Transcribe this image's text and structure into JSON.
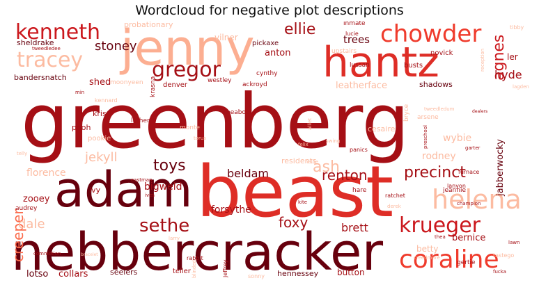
{
  "title": "Wordcloud for negative plot descriptions",
  "words": [
    {
      "text": "greenberg",
      "color": "#a50f15",
      "weight": 1.0
    },
    {
      "text": "beast",
      "color": "#de2d26",
      "weight": 0.9
    },
    {
      "text": "nebbercracker",
      "color": "#67000d",
      "weight": 0.78
    },
    {
      "text": "jenny",
      "color": "#fcae91",
      "weight": 0.72
    },
    {
      "text": "adam",
      "color": "#67000d",
      "weight": 0.7
    },
    {
      "text": "hantz",
      "color": "#de2d26",
      "weight": 0.62
    },
    {
      "text": "helena",
      "color": "#fcbba1",
      "weight": 0.4
    },
    {
      "text": "chowder",
      "color": "#ef3b2c",
      "weight": 0.38
    },
    {
      "text": "coraline",
      "color": "#ef3b2c",
      "weight": 0.38
    },
    {
      "text": "kenneth",
      "color": "#cb181d",
      "weight": 0.34
    },
    {
      "text": "tracey",
      "color": "#fcbba1",
      "weight": 0.34
    },
    {
      "text": "krueger",
      "color": "#cb181d",
      "weight": 0.34
    },
    {
      "text": "gregor",
      "color": "#a50f15",
      "weight": 0.3
    },
    {
      "text": "precinct",
      "color": "#a50f15",
      "weight": 0.28
    },
    {
      "text": "sethe",
      "color": "#a50f15",
      "weight": 0.28
    },
    {
      "text": "creeper",
      "color": "#fb6a4a",
      "weight": 0.27
    },
    {
      "text": "ash",
      "color": "#fcbba1",
      "weight": 0.26
    },
    {
      "text": "agnes",
      "color": "#cb181d",
      "weight": 0.25
    },
    {
      "text": "toys",
      "color": "#67000d",
      "weight": 0.24
    },
    {
      "text": "ellie",
      "color": "#a50f15",
      "weight": 0.22
    },
    {
      "text": "stoney",
      "color": "#67000d",
      "weight": 0.2
    },
    {
      "text": "foxy",
      "color": "#a50f15",
      "weight": 0.2
    },
    {
      "text": "renton",
      "color": "#a50f15",
      "weight": 0.2
    },
    {
      "text": "dale",
      "color": "#fcbba1",
      "weight": 0.2
    },
    {
      "text": "jekyll",
      "color": "#fcbba1",
      "weight": 0.2
    },
    {
      "text": "brett",
      "color": "#a50f15",
      "weight": 0.18
    },
    {
      "text": "lotso",
      "color": "#67000d",
      "weight": 0.12
    },
    {
      "text": "collars",
      "color": "#a50f15",
      "weight": 0.12
    },
    {
      "text": "hyde",
      "color": "#a50f15",
      "weight": 0.18
    },
    {
      "text": "beldam",
      "color": "#67000d",
      "weight": 0.18
    },
    {
      "text": "florence",
      "color": "#fcbba1",
      "weight": 0.17
    },
    {
      "text": "rodney",
      "color": "#fcbba1",
      "weight": 0.16
    },
    {
      "text": "bigweld",
      "color": "#a50f15",
      "weight": 0.16
    },
    {
      "text": "forsythe",
      "color": "#a50f15",
      "weight": 0.16
    },
    {
      "text": "trees",
      "color": "#67000d",
      "weight": 0.16
    },
    {
      "text": "anton",
      "color": "#a50f15",
      "weight": 0.15
    },
    {
      "text": "wybie",
      "color": "#fcbba1",
      "weight": 0.15
    },
    {
      "text": "bernice",
      "color": "#a50f15",
      "weight": 0.14
    },
    {
      "text": "betty",
      "color": "#fcbba1",
      "weight": 0.14
    },
    {
      "text": "leatherface",
      "color": "#fcbba1",
      "weight": 0.14
    },
    {
      "text": "jabberwocky",
      "color": "#67000d",
      "weight": 0.14
    },
    {
      "text": "zooey",
      "color": "#a50f15",
      "weight": 0.13
    },
    {
      "text": "seelers",
      "color": "#67000d",
      "weight": 0.11
    },
    {
      "text": "hennessey",
      "color": "#67000d",
      "weight": 0.1
    },
    {
      "text": "button",
      "color": "#a50f15",
      "weight": 0.11
    },
    {
      "text": "shadows",
      "color": "#67000d",
      "weight": 0.1
    },
    {
      "text": "shed",
      "color": "#a50f15",
      "weight": 0.11
    },
    {
      "text": "probationary",
      "color": "#fcbba1",
      "weight": 0.1
    },
    {
      "text": "sheldrake",
      "color": "#67000d",
      "weight": 0.1
    },
    {
      "text": "pickaxe",
      "color": "#67000d",
      "weight": 0.09
    },
    {
      "text": "vilner",
      "color": "#fcbba1",
      "weight": 0.1
    },
    {
      "text": "inmate",
      "color": "#a50f15",
      "weight": 0.08
    },
    {
      "text": "novick",
      "color": "#a50f15",
      "weight": 0.08
    },
    {
      "text": "ler",
      "color": "#a50f15",
      "weight": 0.1
    },
    {
      "text": "bandersnatch",
      "color": "#67000d",
      "weight": 0.09
    },
    {
      "text": "denver",
      "color": "#a50f15",
      "weight": 0.09
    },
    {
      "text": "westley",
      "color": "#a50f15",
      "weight": 0.08
    },
    {
      "text": "ackroyd",
      "color": "#a50f15",
      "weight": 0.08
    },
    {
      "text": "cynthy",
      "color": "#a50f15",
      "weight": 0.08
    },
    {
      "text": "kris",
      "color": "#a50f15",
      "weight": 0.09
    },
    {
      "text": "pooh",
      "color": "#a50f15",
      "weight": 0.09
    },
    {
      "text": "pookie",
      "color": "#fcbba1",
      "weight": 0.09
    },
    {
      "text": "luther",
      "color": "#a50f15",
      "weight": 0.08
    },
    {
      "text": "monte",
      "color": "#fcbba1",
      "weight": 0.08
    },
    {
      "text": "peabody",
      "color": "#a50f15",
      "weight": 0.08
    },
    {
      "text": "cesaire",
      "color": "#fcbba1",
      "weight": 0.09
    },
    {
      "text": "ivy",
      "color": "#a50f15",
      "weight": 0.08
    },
    {
      "text": "audrey",
      "color": "#a50f15",
      "weight": 0.07
    },
    {
      "text": "jeannie",
      "color": "#a50f15",
      "weight": 0.08
    },
    {
      "text": "gertie",
      "color": "#a50f15",
      "weight": 0.07
    },
    {
      "text": "lanyon",
      "color": "#a50f15",
      "weight": 0.06
    },
    {
      "text": "furnace",
      "color": "#a50f15",
      "weight": 0.06
    },
    {
      "text": "ratchet",
      "color": "#a50f15",
      "weight": 0.06
    },
    {
      "text": "hare",
      "color": "#a50f15",
      "weight": 0.07
    },
    {
      "text": "arsene",
      "color": "#fcbba1",
      "weight": 0.07
    },
    {
      "text": "lussan",
      "color": "#a50f15",
      "weight": 0.07
    },
    {
      "text": "busts",
      "color": "#a50f15",
      "weight": 0.08
    },
    {
      "text": "panics",
      "color": "#a50f15",
      "weight": 0.06
    },
    {
      "text": "kite",
      "color": "#a50f15",
      "weight": 0.05
    },
    {
      "text": "residents",
      "color": "#fcbba1",
      "weight": 0.09
    },
    {
      "text": "felix",
      "color": "#fcbba1",
      "weight": 0.06
    },
    {
      "text": "krasna",
      "color": "#a50f15",
      "weight": 0.07
    },
    {
      "text": "upstairs",
      "color": "#fcbba1",
      "weight": 0.07
    },
    {
      "text": "lucie",
      "color": "#a50f15",
      "weight": 0.07
    },
    {
      "text": "kennard",
      "color": "#fcbba1",
      "weight": 0.07
    },
    {
      "text": "teller",
      "color": "#a50f15",
      "weight": 0.07
    },
    {
      "text": "sonny",
      "color": "#fcbba1",
      "weight": 0.06
    },
    {
      "text": "jeffrey",
      "color": "#a50f15",
      "weight": 0.06
    },
    {
      "text": "rabbit",
      "color": "#a50f15",
      "weight": 0.06
    },
    {
      "text": "moonyeen",
      "color": "#fcbba1",
      "weight": 0.07
    },
    {
      "text": "tweedledee",
      "color": "#a50f15",
      "weight": 0.06
    },
    {
      "text": "tweedledum",
      "color": "#fcbba1",
      "weight": 0.06
    },
    {
      "text": "tibby",
      "color": "#fcbba1",
      "weight": 0.06
    },
    {
      "text": "lagden",
      "color": "#fcbba1",
      "weight": 0.06
    },
    {
      "text": "reception",
      "color": "#fcbba1",
      "weight": 0.05
    },
    {
      "text": "telly",
      "color": "#fcbba1",
      "weight": 0.06
    },
    {
      "text": "commotion",
      "color": "#a50f15",
      "weight": 0.05
    },
    {
      "text": "bracelet",
      "color": "#fcbba1",
      "weight": 0.05
    },
    {
      "text": "larry",
      "color": "#fcbba1",
      "weight": 0.06
    },
    {
      "text": "min",
      "color": "#a50f15",
      "weight": 0.06
    },
    {
      "text": "torus",
      "color": "#fcbba1",
      "weight": 0.05
    },
    {
      "text": "nellie",
      "color": "#fcbba1",
      "weight": 0.06
    },
    {
      "text": "swing",
      "color": "#fcbba1",
      "weight": 0.05
    },
    {
      "text": "preschool",
      "color": "#a50f15",
      "weight": 0.05
    },
    {
      "text": "tastego",
      "color": "#fcbba1",
      "weight": 0.05
    },
    {
      "text": "lawn",
      "color": "#a50f15",
      "weight": 0.05
    },
    {
      "text": "garter",
      "color": "#a50f15",
      "weight": 0.05
    },
    {
      "text": "champion",
      "color": "#a50f15",
      "weight": 0.05
    },
    {
      "text": "fucka",
      "color": "#a50f15",
      "weight": 0.05
    },
    {
      "text": "bryce",
      "color": "#fcbba1",
      "weight": 0.06
    },
    {
      "text": "creedmore",
      "color": "#fcbba1",
      "weight": 0.05
    },
    {
      "text": "thea",
      "color": "#a50f15",
      "weight": 0.05
    },
    {
      "text": "derek",
      "color": "#fcbba1",
      "weight": 0.05
    },
    {
      "text": "ives",
      "color": "#a50f15",
      "weight": 0.05
    },
    {
      "text": "eastman",
      "color": "#a50f15",
      "weight": 0.05
    },
    {
      "text": "alliet",
      "color": "#fcbba1",
      "weight": 0.05
    },
    {
      "text": "blinded",
      "color": "#fcbba1",
      "weight": 0.05
    },
    {
      "text": "dealers",
      "color": "#a50f15",
      "weight": 0.04
    }
  ]
}
